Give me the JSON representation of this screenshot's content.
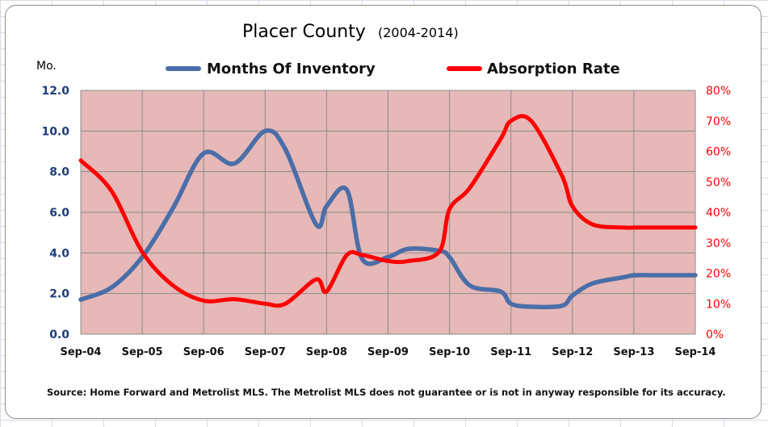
{
  "chart_data": {
    "type": "line",
    "title": "Placer County",
    "subtitle": "(2004-2014)",
    "left_axis_unit": "Mo.",
    "source_note": "Source: Home Forward and  Metrolist MLS. The Metrolist MLS does not guarantee or is not in anyway responsible for its accuracy.",
    "categories": [
      "Sep-04",
      "Sep-05",
      "Sep-06",
      "Sep-07",
      "Sep-08",
      "Sep-09",
      "Sep-10",
      "Sep-11",
      "Sep-12",
      "Sep-13",
      "Sep-14"
    ],
    "x_range": [
      2004.67,
      2014.67
    ],
    "y_left": {
      "range": [
        0,
        12
      ],
      "ticks": [
        "0.0",
        "2.0",
        "4.0",
        "6.0",
        "8.0",
        "10.0",
        "12.0"
      ]
    },
    "y_right": {
      "range": [
        0,
        80
      ],
      "ticks": [
        "0%",
        "10%",
        "20%",
        "30%",
        "40%",
        "50%",
        "60%",
        "70%",
        "80%"
      ]
    },
    "series": [
      {
        "name": "Months Of Inventory",
        "axis": "left",
        "color": "#4a6ea8",
        "x": [
          2004.67,
          2005.17,
          2005.67,
          2006.17,
          2006.67,
          2007.17,
          2007.67,
          2008.0,
          2008.5,
          2008.67,
          2009.0,
          2009.25,
          2009.67,
          2010.0,
          2010.5,
          2010.67,
          2011.0,
          2011.5,
          2011.67,
          2012.0,
          2012.5,
          2012.67,
          2013.0,
          2013.5,
          2013.67,
          2014.0,
          2014.5,
          2014.67
        ],
        "values": [
          1.7,
          2.3,
          3.8,
          6.2,
          8.9,
          8.4,
          10.0,
          9.1,
          5.4,
          6.3,
          7.1,
          3.7,
          3.8,
          4.2,
          4.1,
          3.8,
          2.4,
          2.1,
          1.5,
          1.35,
          1.4,
          1.9,
          2.5,
          2.8,
          2.9,
          2.9,
          2.9,
          2.9
        ]
      },
      {
        "name": "Absorption Rate",
        "axis": "right",
        "color": "#ff0000",
        "x": [
          2004.67,
          2005.17,
          2005.67,
          2006.17,
          2006.67,
          2007.17,
          2007.67,
          2008.0,
          2008.5,
          2008.67,
          2009.0,
          2009.25,
          2009.67,
          2010.0,
          2010.5,
          2010.67,
          2011.0,
          2011.5,
          2011.67,
          2012.0,
          2012.5,
          2012.67,
          2013.0,
          2013.5,
          2013.67,
          2014.0,
          2014.5,
          2014.67
        ],
        "values": [
          57,
          47,
          27,
          16,
          11,
          11.5,
          10,
          10,
          18,
          14,
          26,
          26,
          24,
          24,
          27,
          41,
          48,
          64,
          70,
          70,
          52,
          42,
          36,
          35,
          35,
          35,
          35,
          35
        ]
      }
    ],
    "legend": "top",
    "grid": true,
    "plot_background": "#e6b8b7"
  }
}
